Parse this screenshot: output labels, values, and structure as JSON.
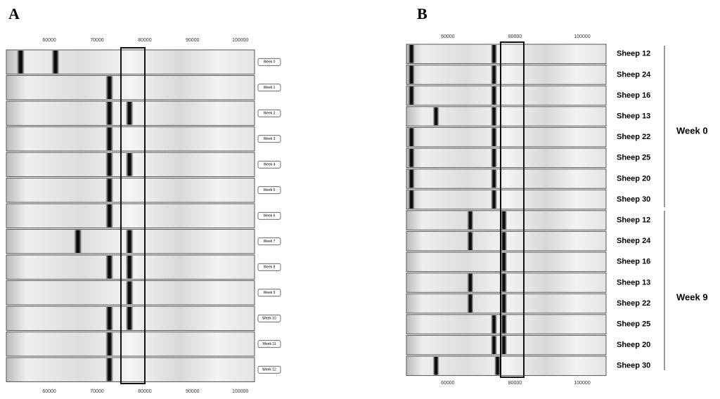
{
  "panels": [
    {
      "label": "A",
      "xlim": [
        51000,
        103000
      ],
      "ticks": [
        60000,
        70000,
        80000,
        90000,
        100000
      ],
      "lanes": [
        {
          "label": "Week 0",
          "bands": [
            54000,
            61300
          ]
        },
        {
          "label": "Week 1",
          "bands": [
            72600
          ]
        },
        {
          "label": "Week 2",
          "bands": [
            72600,
            76800
          ]
        },
        {
          "label": "Week 3",
          "bands": [
            72600
          ]
        },
        {
          "label": "Week 4",
          "bands": [
            72600,
            76800
          ]
        },
        {
          "label": "Week 5",
          "bands": [
            72600
          ]
        },
        {
          "label": "Week 6",
          "bands": [
            72600
          ]
        },
        {
          "label": "Week 7",
          "bands": [
            66000,
            76800
          ]
        },
        {
          "label": "Week 8",
          "bands": [
            72600,
            76800
          ]
        },
        {
          "label": "Week 9",
          "bands": [
            76800
          ]
        },
        {
          "label": "Week 10",
          "bands": [
            72600,
            76800
          ]
        },
        {
          "label": "Week 11",
          "bands": [
            72600
          ]
        },
        {
          "label": "Week 12",
          "bands": [
            72600
          ]
        }
      ]
    },
    {
      "label": "B",
      "xlim": [
        47700,
        107100
      ],
      "ticks": [
        60000,
        80000,
        100000
      ],
      "groups": [
        {
          "label": "Week 0",
          "lanes": [
            {
              "label": "Sheep 12",
              "bands": [
                49200,
                73750
              ]
            },
            {
              "label": "Sheep 24",
              "bands": [
                49200,
                73750
              ]
            },
            {
              "label": "Sheep 16",
              "bands": [
                49200,
                73750
              ]
            },
            {
              "label": "Sheep 13",
              "bands": [
                56500,
                73750
              ]
            },
            {
              "label": "Sheep 22",
              "bands": [
                49200,
                73750
              ]
            },
            {
              "label": "Sheep 25",
              "bands": [
                49200,
                73750
              ]
            },
            {
              "label": "Sheep 20",
              "bands": [
                49200,
                73750
              ]
            },
            {
              "label": "Sheep 30",
              "bands": [
                49200,
                73750
              ]
            }
          ]
        },
        {
          "label": "Week 9",
          "lanes": [
            {
              "label": "Sheep 12",
              "bands": [
                66700,
                76700
              ]
            },
            {
              "label": "Sheep 24",
              "bands": [
                66700,
                76700
              ]
            },
            {
              "label": "Sheep 16",
              "bands": [
                76700
              ]
            },
            {
              "label": "Sheep 13",
              "bands": [
                66700,
                76700
              ]
            },
            {
              "label": "Sheep 22",
              "bands": [
                66700,
                76700
              ]
            },
            {
              "label": "Sheep 25",
              "bands": [
                73750,
                76700
              ]
            },
            {
              "label": "Sheep 20",
              "bands": [
                73750,
                76700
              ]
            },
            {
              "label": "Sheep 30",
              "bands": [
                56500,
                74800
              ]
            }
          ]
        }
      ]
    }
  ]
}
